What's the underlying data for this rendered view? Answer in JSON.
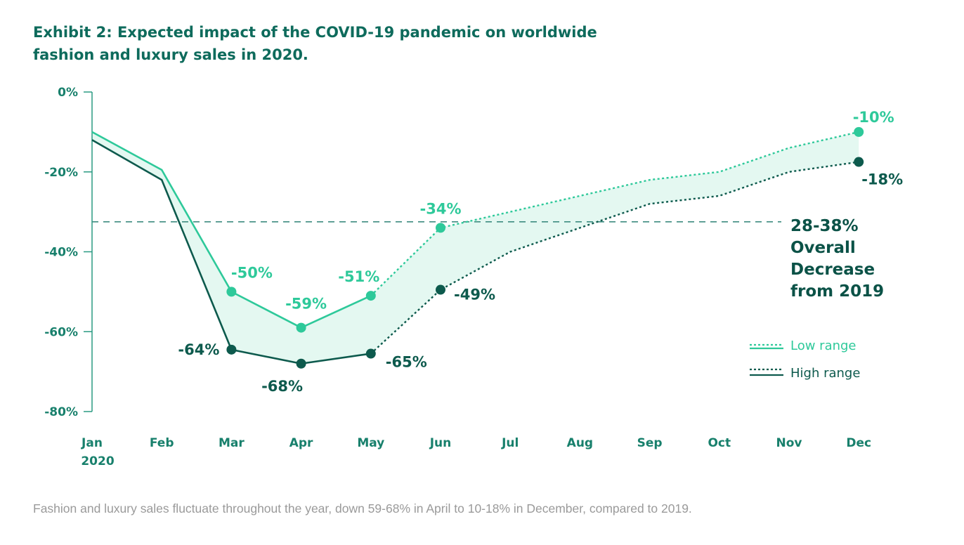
{
  "title_line1": "Exhibit 2: Expected impact of the COVID-19 pandemic on worldwide",
  "title_line2": "fashion and luxury sales in 2020.",
  "caption": "Fashion and luxury sales fluctuate throughout the year, down 59-68% in April to 10-18% in December, compared to 2019.",
  "colors": {
    "low": "#2ec99a",
    "high": "#0d5a4d",
    "band": "#e4f8f1",
    "axis": "#2a9a82",
    "tick_text": "#18806c",
    "ref_line": "#3d8c80"
  },
  "chart_data": {
    "type": "line",
    "title": "Exhibit 2: Expected impact of the COVID-19 pandemic on worldwide fashion and luxury sales in 2020.",
    "categories": [
      "Jan",
      "Feb",
      "Mar",
      "Apr",
      "May",
      "Jun",
      "Jul",
      "Aug",
      "Sep",
      "Oct",
      "Nov",
      "Dec"
    ],
    "year_label": "2020",
    "ylim": [
      -80,
      0
    ],
    "yticks": [
      0,
      -20,
      -40,
      -60,
      -80
    ],
    "ytick_labels": [
      "0%",
      "-20%",
      "-40%",
      "-60%",
      "-80%"
    ],
    "series": [
      {
        "name": "Low range",
        "values": [
          -10,
          -19.5,
          -50,
          -59,
          -51,
          -34,
          -30,
          -26,
          -22,
          -20,
          -14,
          -10
        ],
        "solid_through_index": 4,
        "markers": [
          2,
          3,
          4,
          5,
          11
        ],
        "labels": {
          "2": "-50%",
          "3": "-59%",
          "4": "-51%",
          "5": "-34%",
          "11": "-10%"
        }
      },
      {
        "name": "High range",
        "values": [
          -12,
          -22,
          -64.5,
          -68,
          -65.5,
          -49.5,
          -40,
          -34,
          -28,
          -26,
          -20,
          -17.5
        ],
        "solid_through_index": 4,
        "markers": [
          2,
          3,
          4,
          5,
          11
        ],
        "labels": {
          "2": "-64%",
          "3": "-68%",
          "4": "-65%",
          "5": "-49%",
          "11": "-18%"
        }
      }
    ],
    "reference_line": {
      "value": -32.5,
      "style": "dashed"
    },
    "annotation": [
      "28-38%",
      "Overall",
      "Decrease",
      "from 2019"
    ],
    "legend": [
      {
        "label": "Low range",
        "series": "Low range"
      },
      {
        "label": "High range",
        "series": "High range"
      }
    ],
    "legend_position": "right"
  }
}
